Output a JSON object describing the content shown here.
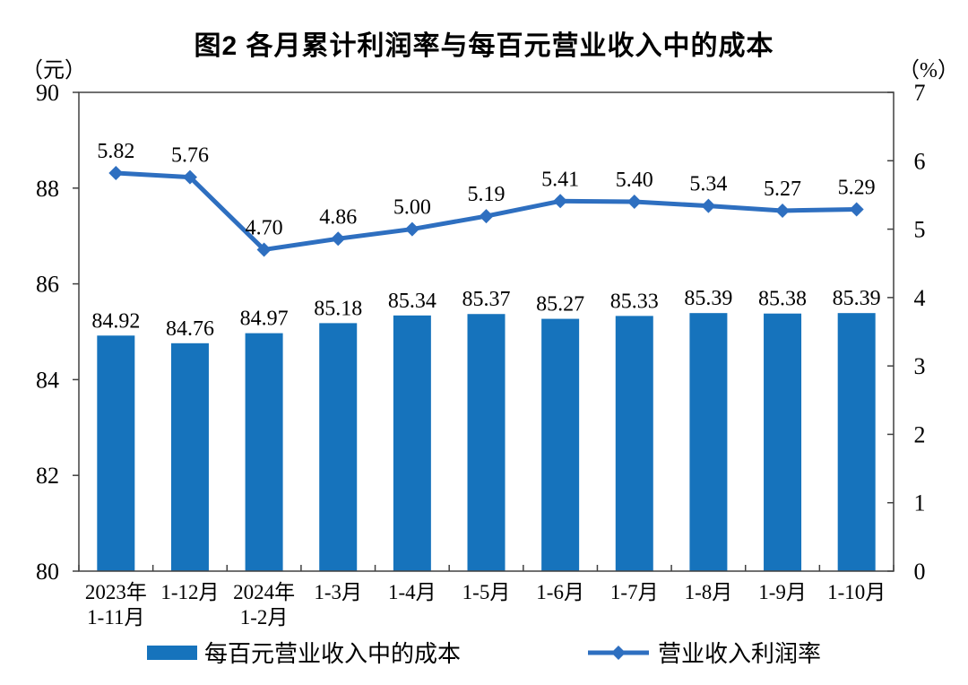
{
  "title": "图2 各月累计利润率与每百元营业收入中的成本",
  "legend": {
    "bar_label": "每百元营业收入中的成本",
    "line_label": "营业收入利润率"
  },
  "colors": {
    "bar": "#1673BC",
    "line": "#2E6FC0",
    "axis": "#404040",
    "text": "#000000"
  },
  "chart_data": {
    "type": "bar",
    "subtype": "bar+line dual axis",
    "title": "图2 各月累计利润率与每百元营业收入中的成本",
    "grid": false,
    "legend_position": "bottom",
    "categories": [
      [
        "2023年",
        "1-11月"
      ],
      [
        "1-12月"
      ],
      [
        "2024年",
        "1-2月"
      ],
      [
        "1-3月"
      ],
      [
        "1-4月"
      ],
      [
        "1-5月"
      ],
      [
        "1-6月"
      ],
      [
        "1-7月"
      ],
      [
        "1-8月"
      ],
      [
        "1-9月"
      ],
      [
        "1-10月"
      ]
    ],
    "series": [
      {
        "name": "每百元营业收入中的成本",
        "type": "bar",
        "axis": "left",
        "values": [
          84.92,
          84.76,
          84.97,
          85.18,
          85.34,
          85.37,
          85.27,
          85.33,
          85.39,
          85.38,
          85.39
        ]
      },
      {
        "name": "营业收入利润率",
        "type": "line",
        "axis": "right",
        "marker": "diamond",
        "values": [
          5.82,
          5.76,
          4.7,
          4.86,
          5.0,
          5.19,
          5.41,
          5.4,
          5.34,
          5.27,
          5.29
        ]
      }
    ],
    "left_axis": {
      "unit": "（元）",
      "min": 80,
      "max": 90,
      "ticks": [
        80,
        82,
        84,
        86,
        88,
        90
      ]
    },
    "right_axis": {
      "unit": "（%）",
      "min": 0,
      "max": 7,
      "ticks": [
        0,
        1,
        2,
        3,
        4,
        5,
        6,
        7
      ]
    }
  }
}
